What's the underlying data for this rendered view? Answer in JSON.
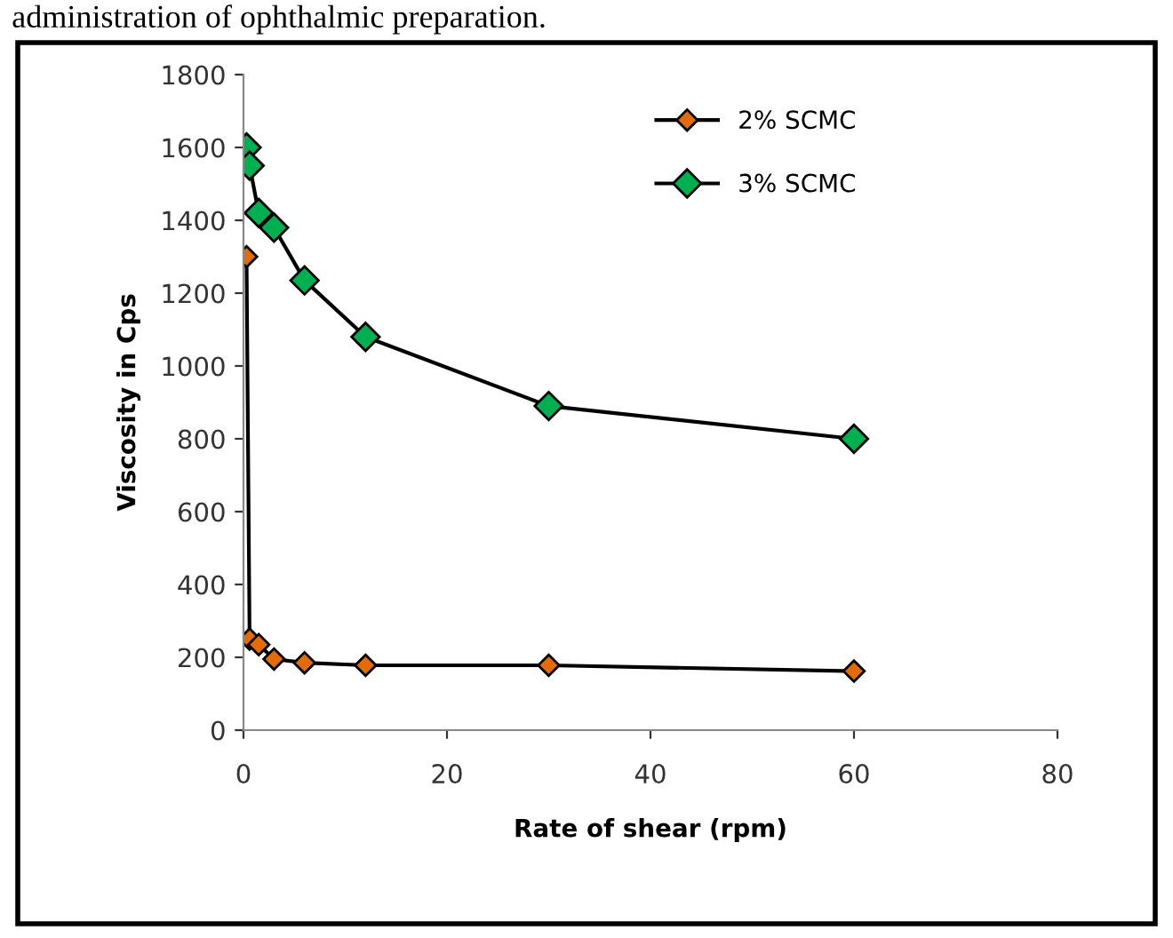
{
  "chart_data": {
    "type": "line",
    "xlabel": "Rate of shear (rpm)",
    "ylabel": "Viscosity in Cps",
    "annotations": [
      "administration of ophthalmic preparation."
    ],
    "x": [
      0.3,
      0.6,
      1.5,
      3,
      6,
      12,
      30,
      60
    ],
    "series": [
      {
        "name": "2% SCMC",
        "color": "#e36c09",
        "values": [
          1300,
          250,
          235,
          195,
          185,
          178,
          178,
          162
        ]
      },
      {
        "name": "3% SCMC",
        "color": "#00b050",
        "values": [
          1600,
          1550,
          1420,
          1380,
          1235,
          1080,
          890,
          800
        ]
      }
    ],
    "xlim": [
      0,
      80
    ],
    "xticks": [
      0,
      20,
      40,
      60,
      80
    ],
    "ylim": [
      0,
      1800
    ],
    "yticks": [
      0,
      200,
      400,
      600,
      800,
      1000,
      1200,
      1400,
      1600,
      1800
    ],
    "grid": false,
    "legend": "top right",
    "marker": "diamond",
    "line_style": "solid"
  }
}
